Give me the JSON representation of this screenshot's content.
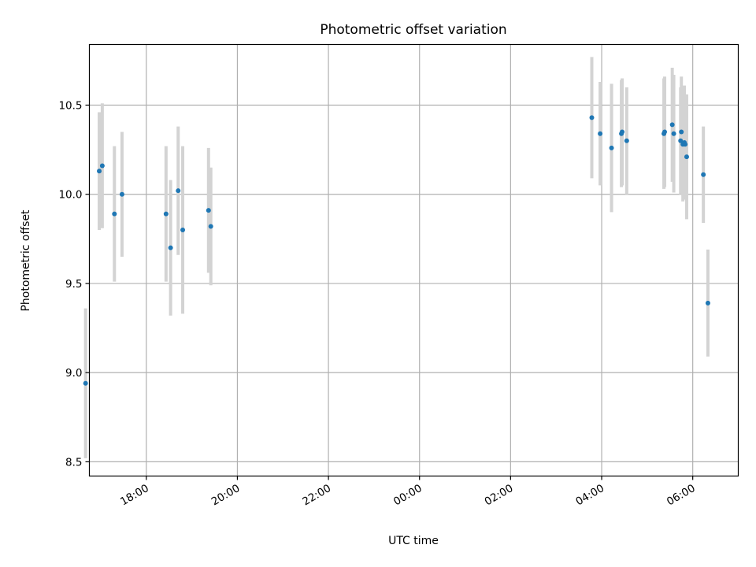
{
  "chart_data": {
    "type": "scatter",
    "title": "Photometric offset variation",
    "xlabel": "UTC time",
    "ylabel": "Photometric offset",
    "x_kind": "time_of_day",
    "x_start": "16:50",
    "x_end": "07:00 (next day)",
    "ylim": [
      8.42,
      10.84
    ],
    "grid": true,
    "x_ticks": [
      "18:00",
      "20:00",
      "22:00",
      "00:00",
      "02:00",
      "04:00",
      "06:00"
    ],
    "y_ticks": [
      "8.5",
      "9.0",
      "9.5",
      "10.0",
      "10.5"
    ],
    "y_tick_values": [
      8.5,
      9.0,
      9.5,
      10.0,
      10.5
    ],
    "colors": {
      "point": "#1f77b4",
      "errorbar": "#d3d3d3",
      "grid": "#b0b0b0",
      "axes": "#000000"
    },
    "points": [
      {
        "x": "16:40",
        "y": 8.94,
        "err": 0.42
      },
      {
        "x": "16:58",
        "y": 10.13,
        "err": 0.33
      },
      {
        "x": "17:02",
        "y": 10.16,
        "err": 0.35
      },
      {
        "x": "17:18",
        "y": 9.89,
        "err": 0.38
      },
      {
        "x": "17:28",
        "y": 10.0,
        "err": 0.35
      },
      {
        "x": "18:26",
        "y": 9.89,
        "err": 0.38
      },
      {
        "x": "18:32",
        "y": 9.7,
        "err": 0.38
      },
      {
        "x": "18:42",
        "y": 10.02,
        "err": 0.36
      },
      {
        "x": "18:48",
        "y": 9.8,
        "err": 0.47
      },
      {
        "x": "19:22",
        "y": 9.91,
        "err": 0.35
      },
      {
        "x": "19:25",
        "y": 9.82,
        "err": 0.33
      },
      {
        "x": "03:47",
        "y": 10.43,
        "err": 0.34
      },
      {
        "x": "03:58",
        "y": 10.34,
        "err": 0.29
      },
      {
        "x": "04:13",
        "y": 10.26,
        "err": 0.36
      },
      {
        "x": "04:26",
        "y": 10.34,
        "err": 0.3
      },
      {
        "x": "04:27",
        "y": 10.35,
        "err": 0.3
      },
      {
        "x": "04:33",
        "y": 10.3,
        "err": 0.3
      },
      {
        "x": "05:22",
        "y": 10.34,
        "err": 0.31
      },
      {
        "x": "05:23",
        "y": 10.35,
        "err": 0.31
      },
      {
        "x": "05:33",
        "y": 10.39,
        "err": 0.32
      },
      {
        "x": "05:35",
        "y": 10.34,
        "err": 0.33
      },
      {
        "x": "05:44",
        "y": 10.3,
        "err": 0.3
      },
      {
        "x": "05:45",
        "y": 10.35,
        "err": 0.31
      },
      {
        "x": "05:47",
        "y": 10.28,
        "err": 0.32
      },
      {
        "x": "05:49",
        "y": 10.29,
        "err": 0.32
      },
      {
        "x": "05:50",
        "y": 10.28,
        "err": 0.28
      },
      {
        "x": "05:52",
        "y": 10.21,
        "err": 0.35
      },
      {
        "x": "06:14",
        "y": 10.11,
        "err": 0.27
      },
      {
        "x": "06:20",
        "y": 9.39,
        "err": 0.3
      }
    ]
  }
}
